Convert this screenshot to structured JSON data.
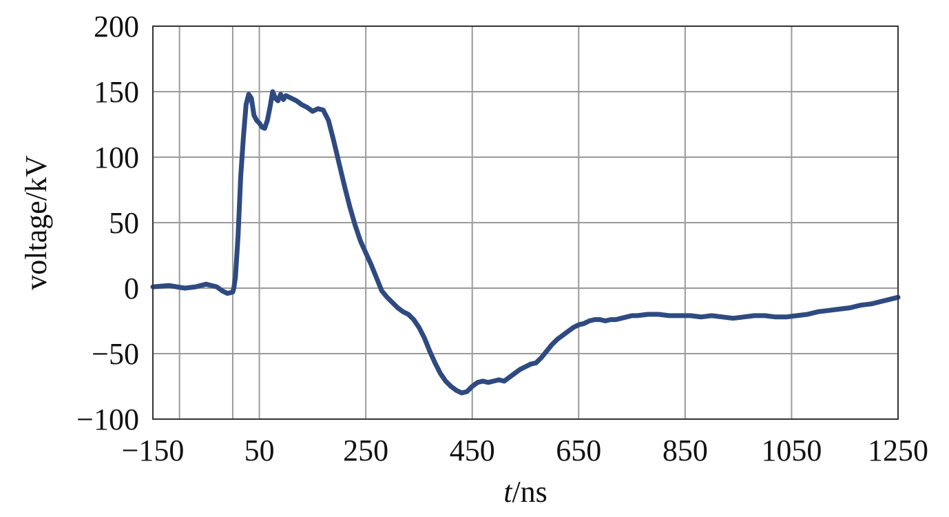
{
  "chart_data": {
    "type": "line",
    "title": "",
    "xlabel": {
      "italic": "t",
      "rest": "/ns"
    },
    "ylabel": "voltage/kV",
    "xlim": [
      -150,
      1250
    ],
    "ylim": [
      -100,
      200
    ],
    "x_ticks": [
      -150,
      50,
      250,
      450,
      650,
      850,
      1050,
      1250
    ],
    "x_tick_labels": [
      "−150",
      "50",
      "250",
      "450",
      "650",
      "850",
      "1050",
      "1250"
    ],
    "y_ticks": [
      -100,
      -50,
      0,
      50,
      100,
      150,
      200
    ],
    "y_tick_labels": [
      "−100",
      "−50",
      "0",
      "50",
      "100",
      "150",
      "200"
    ],
    "x_gridlines": [
      -150,
      -100,
      0,
      50,
      250,
      450,
      650,
      850,
      1050,
      1250
    ],
    "y_gridlines": [
      -100,
      -50,
      0,
      50,
      100,
      150,
      200
    ],
    "grid": true,
    "line_color": "#2e4a80",
    "series": [
      {
        "x": [
          -150,
          -120,
          -90,
          -70,
          -50,
          -30,
          -20,
          -10,
          0,
          2,
          5,
          10,
          15,
          20,
          25,
          30,
          35,
          40,
          45,
          50,
          55,
          60,
          65,
          70,
          75,
          80,
          85,
          90,
          95,
          100,
          110,
          120,
          130,
          140,
          150,
          160,
          170,
          180,
          190,
          200,
          210,
          220,
          230,
          240,
          250,
          260,
          270,
          280,
          290,
          300,
          310,
          320,
          330,
          340,
          350,
          360,
          370,
          380,
          390,
          400,
          410,
          420,
          430,
          440,
          450,
          460,
          470,
          480,
          490,
          500,
          510,
          520,
          530,
          540,
          550,
          560,
          570,
          580,
          590,
          600,
          610,
          620,
          630,
          640,
          650,
          660,
          670,
          680,
          690,
          700,
          710,
          720,
          730,
          740,
          750,
          760,
          780,
          800,
          820,
          840,
          860,
          880,
          900,
          920,
          940,
          960,
          980,
          1000,
          1020,
          1040,
          1060,
          1080,
          1100,
          1120,
          1140,
          1160,
          1180,
          1200,
          1220,
          1240,
          1250
        ],
        "y": [
          1,
          2,
          0,
          1,
          3,
          1,
          -2,
          -4,
          -3,
          0,
          8,
          40,
          85,
          115,
          140,
          148,
          145,
          132,
          128,
          126,
          123,
          122,
          128,
          138,
          150,
          145,
          143,
          148,
          144,
          147,
          145,
          143,
          140,
          138,
          135,
          137,
          136,
          128,
          112,
          95,
          78,
          62,
          48,
          36,
          27,
          18,
          8,
          -2,
          -7,
          -11,
          -15,
          -18,
          -20,
          -24,
          -30,
          -38,
          -48,
          -57,
          -65,
          -71,
          -75,
          -78,
          -80,
          -79,
          -75,
          -72,
          -71,
          -72,
          -71,
          -70,
          -71,
          -68,
          -65,
          -62,
          -60,
          -58,
          -57,
          -53,
          -48,
          -43,
          -39,
          -36,
          -33,
          -30,
          -28,
          -27,
          -25,
          -24,
          -24,
          -25,
          -24,
          -24,
          -23,
          -22,
          -21,
          -21,
          -20,
          -20,
          -21,
          -21,
          -21,
          -22,
          -21,
          -22,
          -23,
          -22,
          -21,
          -21,
          -22,
          -22,
          -21,
          -20,
          -18,
          -17,
          -16,
          -15,
          -13,
          -12,
          -10,
          -8,
          -7
        ]
      }
    ]
  }
}
